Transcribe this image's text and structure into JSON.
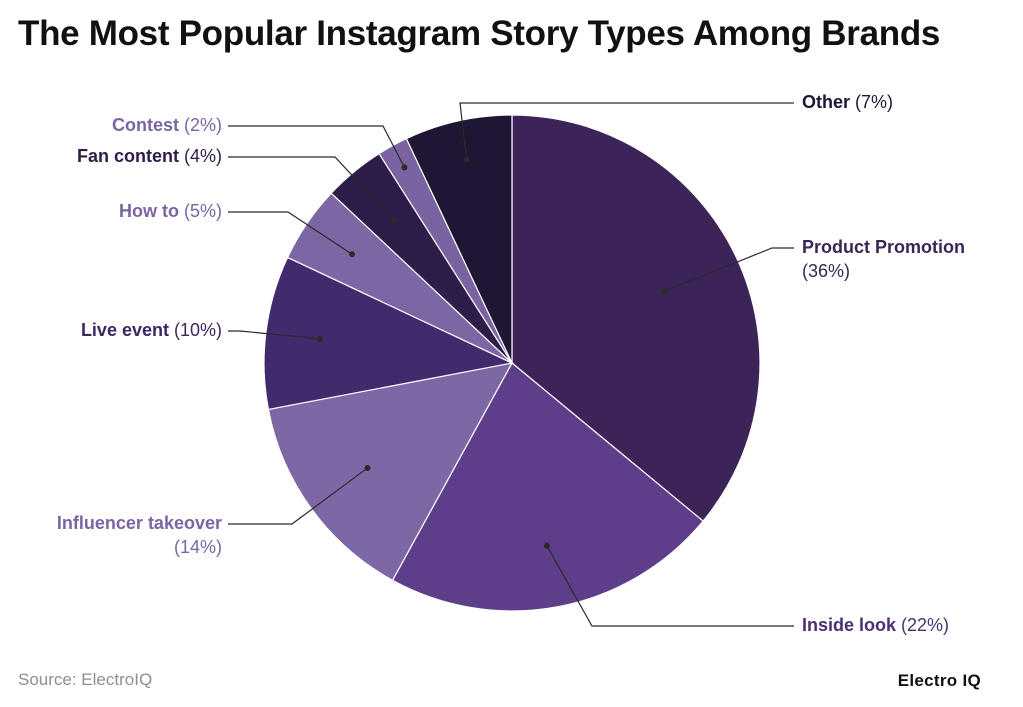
{
  "title": "The Most Popular Instagram Story Types Among Brands",
  "source": "Source: ElectroIQ",
  "brand": "Electro IQ",
  "chart_data": {
    "type": "pie",
    "title": "The Most Popular Instagram Story Types Among Brands",
    "start": "12 o'clock",
    "direction": "clockwise",
    "slices": [
      {
        "label": "Product Promotion",
        "value": 36,
        "pct_text": "(36%)",
        "color": "#3c2459",
        "label_color": "#3a2656"
      },
      {
        "label": "Inside look",
        "value": 22,
        "pct_text": "(22%)",
        "color": "#5e3e8b",
        "label_color": "#4a2f72"
      },
      {
        "label": "Influencer takeover",
        "value": 14,
        "pct_text": "(14%)",
        "color": "#7e67a5",
        "label_color": "#7a65a3"
      },
      {
        "label": "Live event",
        "value": 10,
        "pct_text": "(10%)",
        "color": "#432a6c",
        "label_color": "#3b2663"
      },
      {
        "label": "How to",
        "value": 5,
        "pct_text": "(5%)",
        "color": "#7d66a4",
        "label_color": "#7a65a3"
      },
      {
        "label": "Fan content",
        "value": 4,
        "pct_text": "(4%)",
        "color": "#2e1c49",
        "label_color": "#2e1c49"
      },
      {
        "label": "Contest",
        "value": 2,
        "pct_text": "(2%)",
        "color": "#7b63a1",
        "label_color": "#7a65a3"
      },
      {
        "label": "Other",
        "value": 7,
        "pct_text": "(7%)",
        "color": "#1f1634",
        "label_color": "#1f1634"
      }
    ]
  }
}
